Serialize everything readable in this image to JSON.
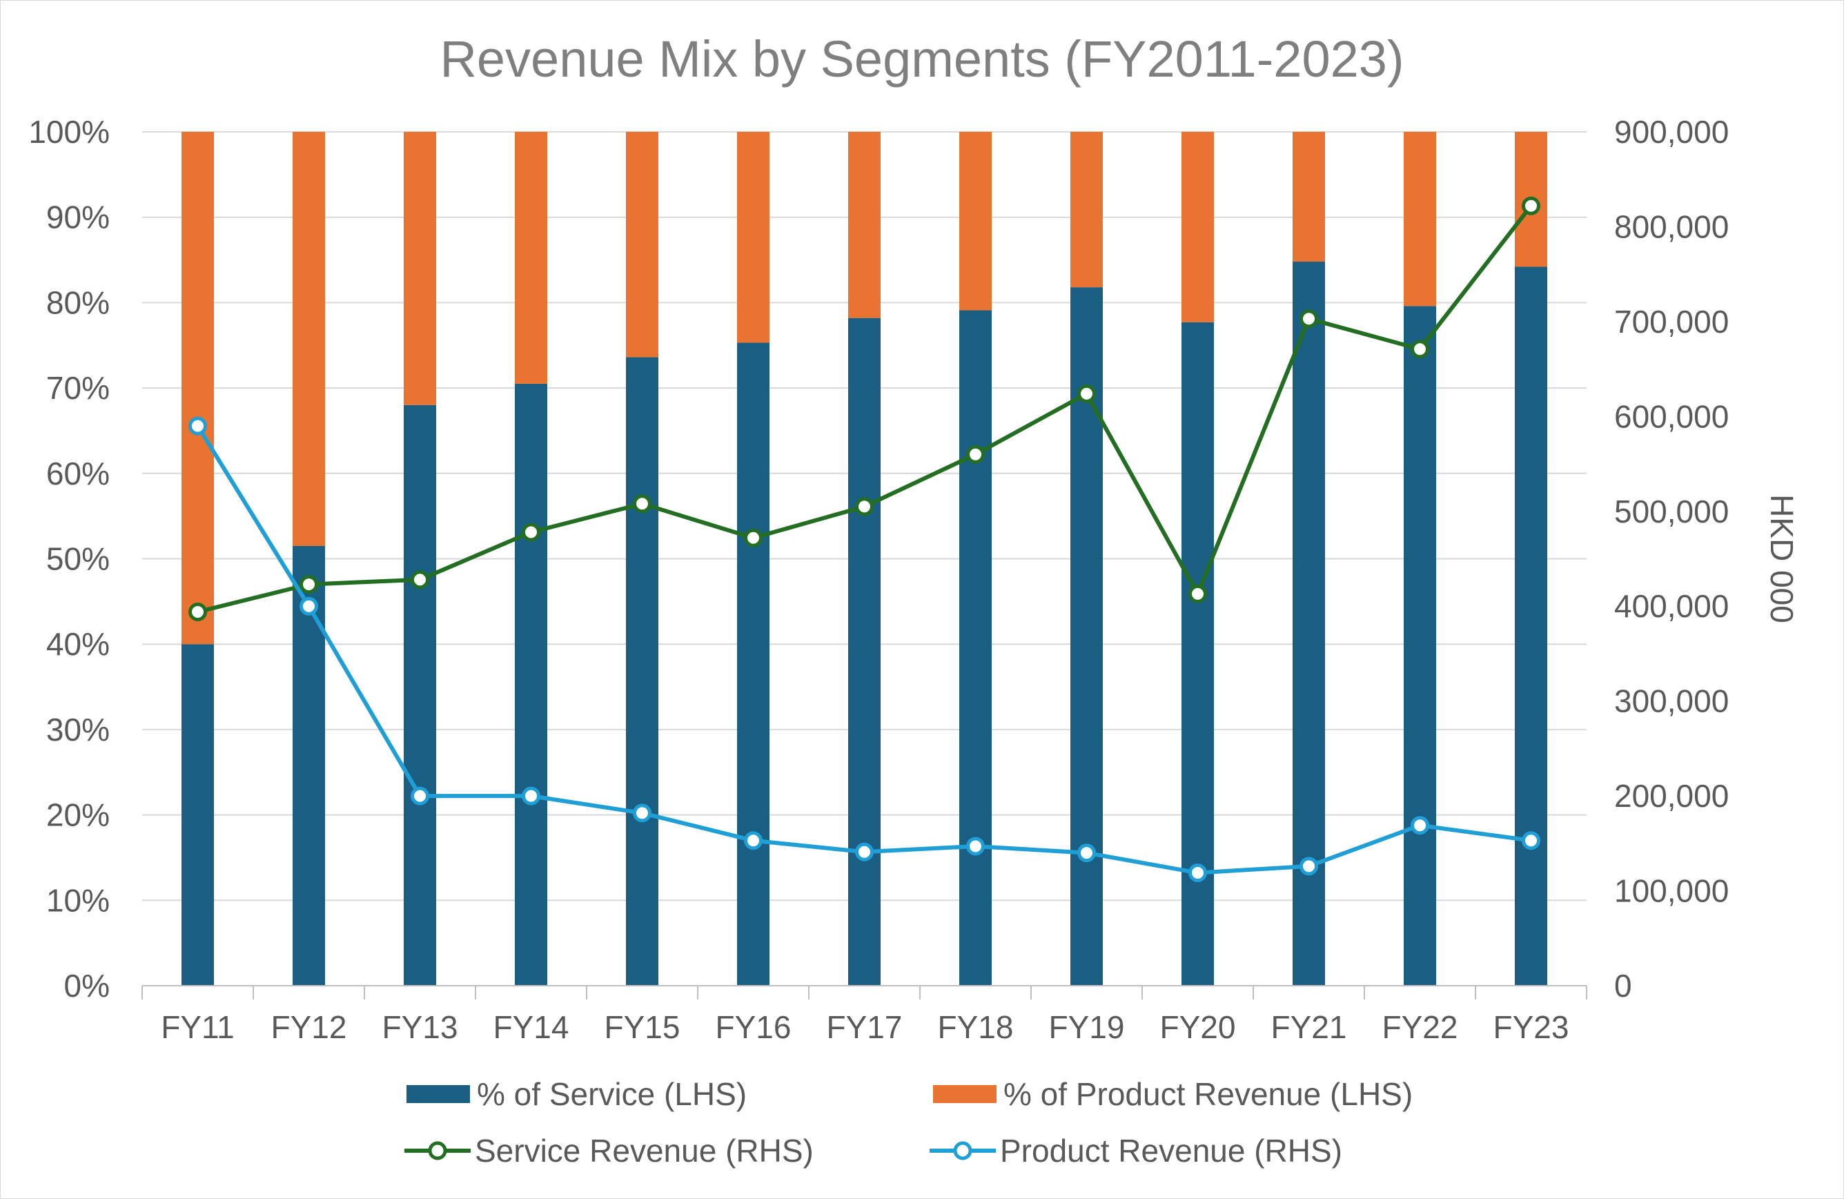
{
  "chart_data": {
    "type": "bar",
    "title": "Revenue Mix by Segments (FY2011-2023)",
    "categories": [
      "FY11",
      "FY12",
      "FY13",
      "FY14",
      "FY15",
      "FY16",
      "FY17",
      "FY18",
      "FY19",
      "FY20",
      "FY21",
      "FY22",
      "FY23"
    ],
    "left_axis": {
      "ylim": [
        0,
        100
      ],
      "tick_values": [
        0,
        10,
        20,
        30,
        40,
        50,
        60,
        70,
        80,
        90,
        100
      ],
      "tick_labels": [
        "0%",
        "10%",
        "20%",
        "30%",
        "40%",
        "50%",
        "60%",
        "70%",
        "80%",
        "90%",
        "100%"
      ]
    },
    "right_axis": {
      "title": "HKD 000",
      "ylim": [
        0,
        900000
      ],
      "tick_values": [
        0,
        100000,
        200000,
        300000,
        400000,
        500000,
        600000,
        700000,
        800000,
        900000
      ],
      "tick_labels": [
        "0",
        "100,000",
        "200,000",
        "300,000",
        "400,000",
        "500,000",
        "600,000",
        "700,000",
        "800,000",
        "900,000"
      ]
    },
    "bar_series": [
      {
        "name": "% of Service (LHS)",
        "axis": "left",
        "color": "#1a5e83",
        "values": [
          40,
          51.5,
          68,
          70.5,
          73.6,
          75.3,
          78.2,
          79.1,
          81.8,
          77.7,
          84.8,
          79.6,
          84.2
        ]
      },
      {
        "name": "% of Product Revenue (LHS)",
        "axis": "left",
        "color": "#e97431",
        "values": [
          60,
          48.5,
          32,
          29.5,
          26.4,
          24.7,
          21.8,
          20.9,
          18.2,
          22.3,
          15.2,
          20.4,
          15.8
        ]
      }
    ],
    "line_series": [
      {
        "name": "Service Revenue (RHS)",
        "axis": "right",
        "color": "#236e22",
        "values": [
          394000,
          423000,
          428000,
          478000,
          508000,
          472000,
          505000,
          560000,
          624000,
          413000,
          703000,
          671000,
          822000
        ]
      },
      {
        "name": "Product Revenue (RHS)",
        "axis": "right",
        "color": "#1f9fd5",
        "values": [
          590000,
          400000,
          200000,
          200000,
          182000,
          153000,
          141000,
          147000,
          140000,
          119000,
          126000,
          169000,
          153000
        ]
      }
    ],
    "grid": true,
    "legend_position": "bottom"
  }
}
